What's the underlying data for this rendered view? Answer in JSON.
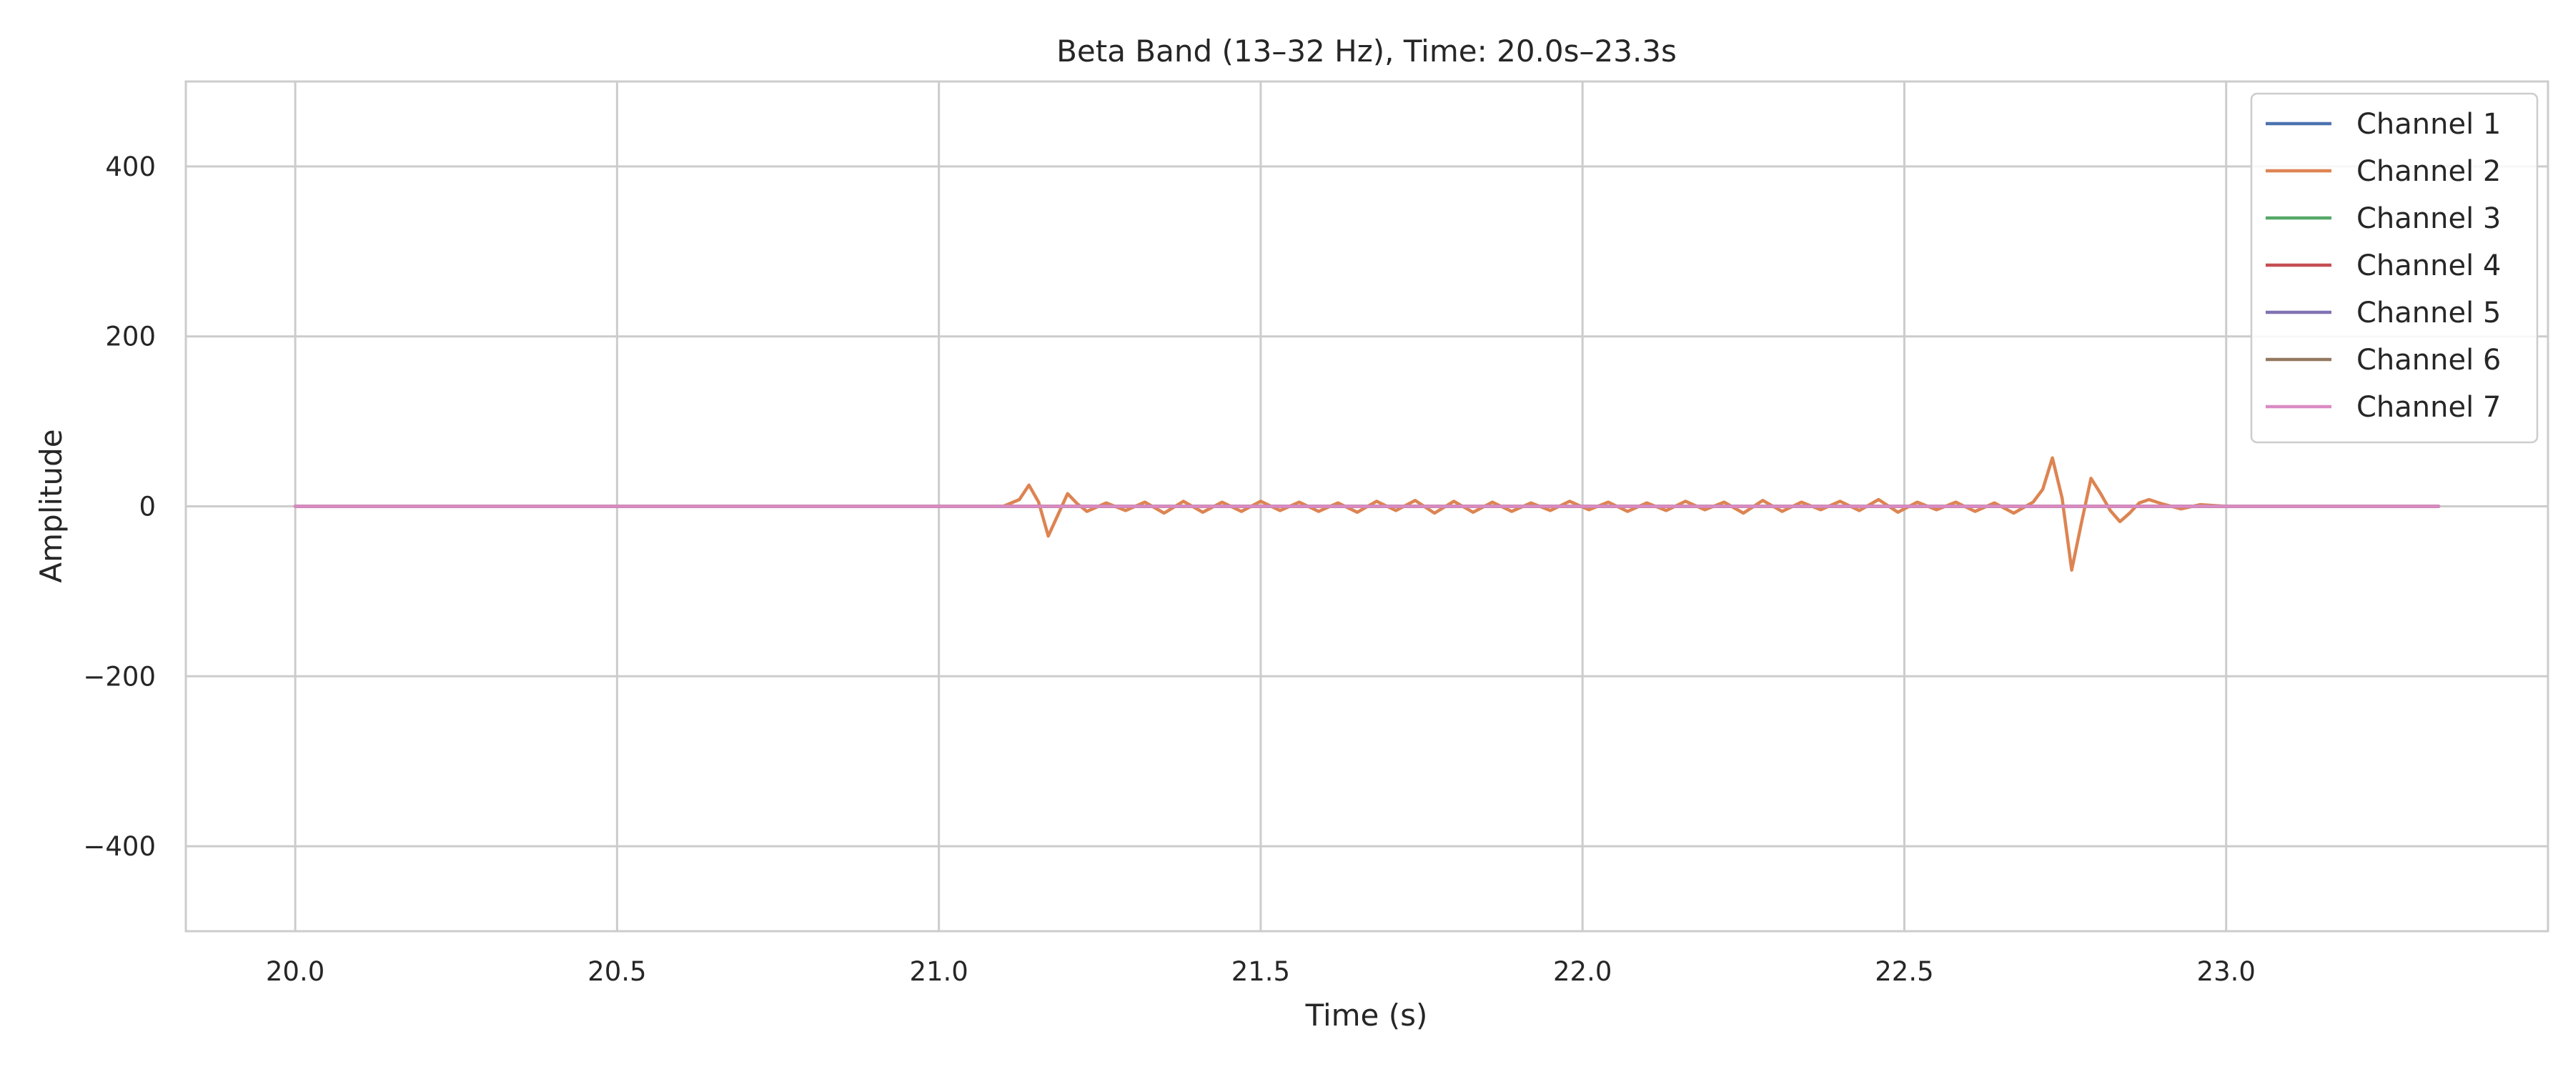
{
  "chart_data": {
    "type": "line",
    "title": "Beta Band (13–32 Hz), Time: 20.0s–23.3s",
    "xlabel": "Time (s)",
    "ylabel": "Amplitude",
    "xlim": [
      19.83,
      23.5
    ],
    "ylim": [
      -500,
      500
    ],
    "xticks": [
      20.0,
      20.5,
      21.0,
      21.5,
      22.0,
      22.5,
      23.0
    ],
    "xtick_labels": [
      "20.0",
      "20.5",
      "21.0",
      "21.5",
      "22.0",
      "22.5",
      "23.0"
    ],
    "yticks": [
      400,
      200,
      0,
      -200,
      -400
    ],
    "ytick_labels": [
      "400",
      "200",
      "0",
      "−200",
      "−400"
    ],
    "grid": true,
    "legend_position": "top-right",
    "x_range": [
      20.0,
      23.33
    ],
    "series": [
      {
        "name": "Channel 1",
        "color": "#4c72b0",
        "x": [
          20.0,
          23.33
        ],
        "y": [
          0,
          0
        ]
      },
      {
        "name": "Channel 2",
        "color": "#dd8452",
        "x": [
          20.0,
          21.1,
          21.125,
          21.14,
          21.155,
          21.17,
          21.185,
          21.2,
          21.215,
          21.23,
          21.26,
          21.29,
          21.32,
          21.35,
          21.38,
          21.41,
          21.44,
          21.47,
          21.5,
          21.53,
          21.56,
          21.59,
          21.62,
          21.65,
          21.68,
          21.71,
          21.74,
          21.77,
          21.8,
          21.83,
          21.86,
          21.89,
          21.92,
          21.95,
          21.98,
          22.01,
          22.04,
          22.07,
          22.1,
          22.13,
          22.16,
          22.19,
          22.22,
          22.25,
          22.28,
          22.31,
          22.34,
          22.37,
          22.4,
          22.43,
          22.46,
          22.49,
          22.52,
          22.55,
          22.58,
          22.61,
          22.64,
          22.67,
          22.7,
          22.715,
          22.73,
          22.745,
          22.76,
          22.775,
          22.79,
          22.805,
          22.82,
          22.835,
          22.85,
          22.865,
          22.88,
          22.9,
          22.93,
          22.96,
          23.0,
          23.33
        ],
        "y": [
          0,
          0,
          8,
          25,
          5,
          -35,
          -10,
          15,
          3,
          -6,
          4,
          -5,
          5,
          -8,
          6,
          -7,
          5,
          -6,
          6,
          -5,
          5,
          -6,
          4,
          -7,
          6,
          -5,
          7,
          -8,
          6,
          -7,
          5,
          -6,
          4,
          -5,
          6,
          -4,
          5,
          -6,
          4,
          -5,
          6,
          -4,
          5,
          -8,
          7,
          -6,
          5,
          -4,
          6,
          -5,
          8,
          -7,
          5,
          -4,
          5,
          -6,
          4,
          -8,
          5,
          20,
          57,
          10,
          -75,
          -20,
          33,
          15,
          -5,
          -18,
          -8,
          4,
          8,
          3,
          -3,
          2,
          0,
          0
        ]
      },
      {
        "name": "Channel 3",
        "color": "#55a868",
        "x": [
          20.0,
          23.33
        ],
        "y": [
          0,
          0
        ]
      },
      {
        "name": "Channel 4",
        "color": "#c44e52",
        "x": [
          20.0,
          23.33
        ],
        "y": [
          0,
          0
        ]
      },
      {
        "name": "Channel 5",
        "color": "#8172b3",
        "x": [
          20.0,
          23.33
        ],
        "y": [
          0,
          0
        ]
      },
      {
        "name": "Channel 6",
        "color": "#937860",
        "x": [
          20.0,
          23.33
        ],
        "y": [
          0,
          0
        ]
      },
      {
        "name": "Channel 7",
        "color": "#da8bc3",
        "x": [
          20.0,
          23.33
        ],
        "y": [
          0,
          0
        ]
      }
    ]
  }
}
